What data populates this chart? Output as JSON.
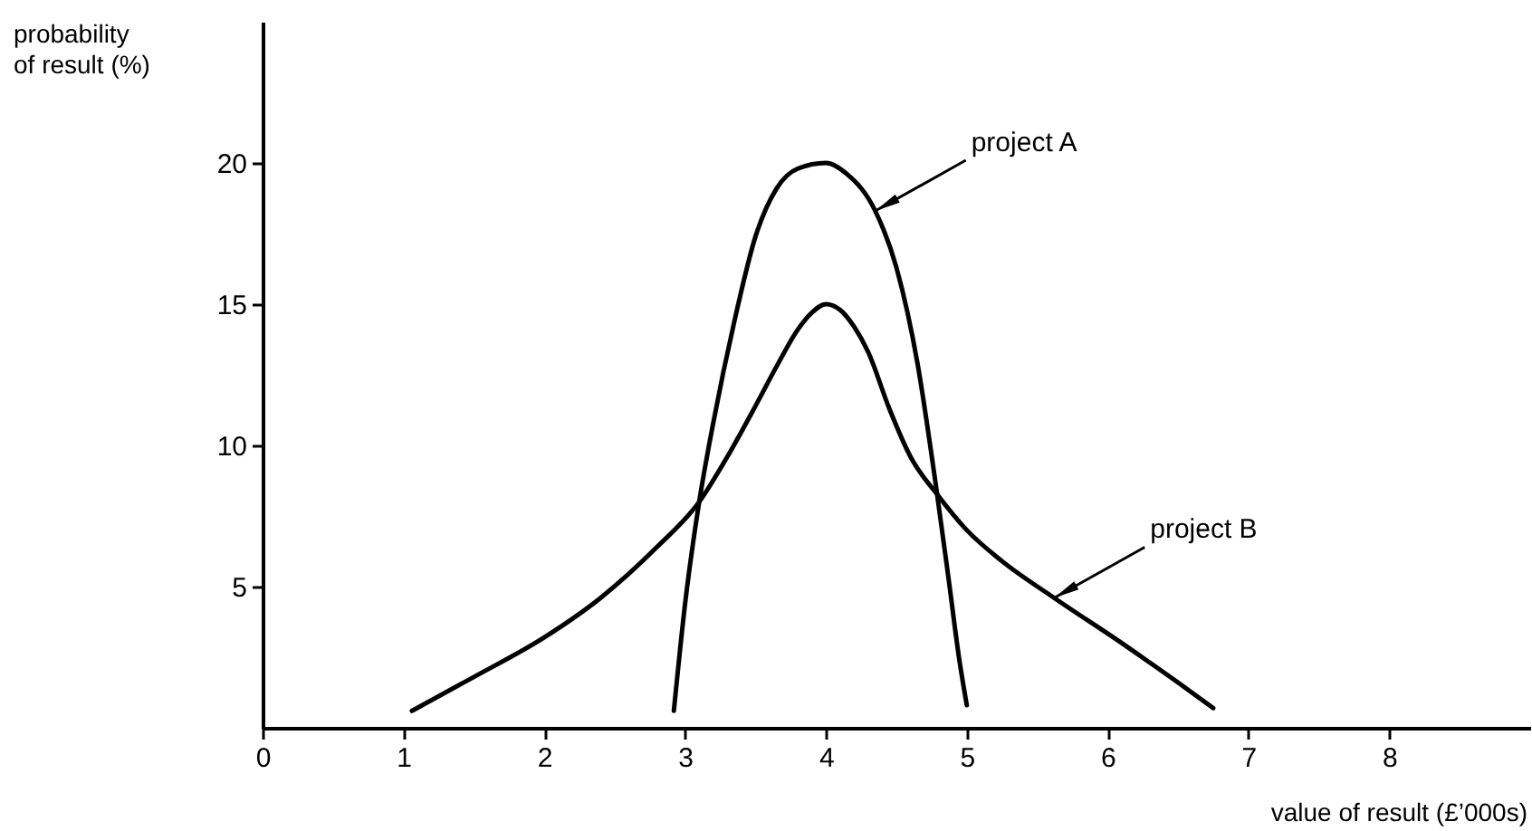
{
  "chart_data": {
    "type": "line",
    "xlabel": "value of result (£’000s)",
    "ylabel": "probability\nof result (%)",
    "xlim": [
      0,
      9
    ],
    "ylim": [
      0,
      25
    ],
    "xticks": [
      0,
      1,
      2,
      3,
      4,
      5,
      6,
      7,
      8
    ],
    "yticks": [
      5,
      10,
      15,
      20
    ],
    "line_style": "solid",
    "series": [
      {
        "color": "#000000",
        "x": [
          2.92,
          3.0,
          3.1,
          3.2,
          3.35,
          3.5,
          3.65,
          3.8,
          4.0,
          4.15,
          4.35,
          4.5,
          4.65,
          4.78,
          4.87,
          4.95,
          5.0
        ],
        "values": [
          0.6,
          4.4,
          8.0,
          10.8,
          14.4,
          17.4,
          19.1,
          19.8,
          20.0,
          19.6,
          18.3,
          16.3,
          12.9,
          8.6,
          5.3,
          2.3,
          0.8
        ]
      },
      {
        "color": "#000000",
        "x": [
          1.06,
          1.5,
          2.0,
          2.4,
          2.8,
          3.1,
          3.3,
          3.5,
          3.65,
          3.8,
          3.9,
          4.0,
          4.1,
          4.2,
          4.3,
          4.45,
          4.6,
          4.8,
          5.0,
          5.25,
          5.62,
          6.1,
          6.5,
          6.75
        ],
        "values": [
          0.6,
          1.8,
          3.2,
          4.6,
          6.4,
          8.0,
          9.6,
          11.4,
          12.8,
          14.1,
          14.7,
          15.0,
          14.8,
          14.2,
          13.3,
          11.3,
          9.6,
          8.2,
          7.0,
          5.9,
          4.6,
          3.0,
          1.6,
          0.7
        ]
      }
    ],
    "annotations": [
      {
        "text": "project A",
        "x": 4.35,
        "y": 18.3
      },
      {
        "text": "project B",
        "x": 5.62,
        "y": 4.6
      }
    ]
  }
}
